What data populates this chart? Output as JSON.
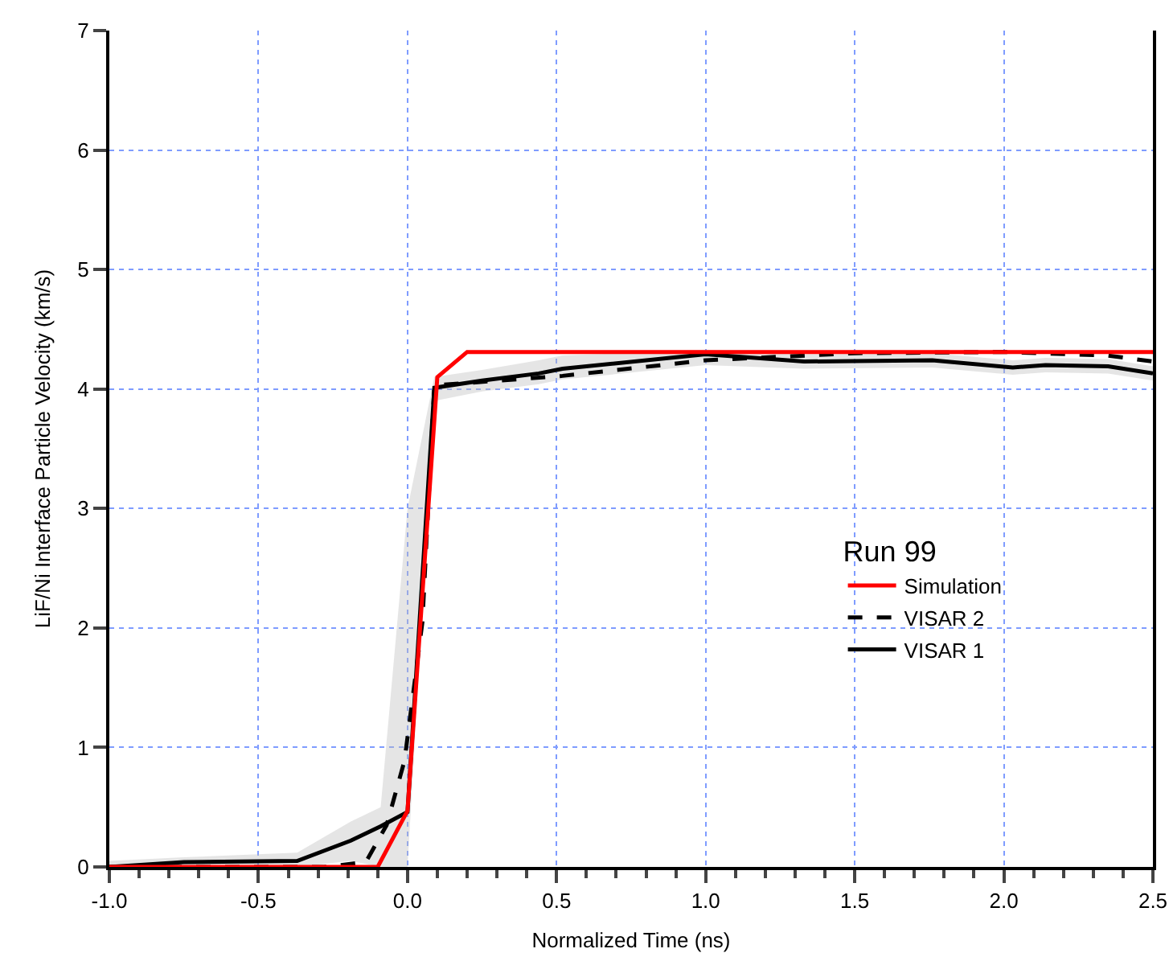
{
  "chart_data": {
    "type": "line",
    "xlabel": "Normalized Time (ns)",
    "ylabel": "LiF/Ni Interface Particle Velocity (km/s)",
    "legend_title": "Run 99",
    "legend": "right",
    "grid": true,
    "marker": "none",
    "xlim": [
      -1,
      2.5
    ],
    "ylim": [
      0,
      7
    ],
    "xticks": [
      {
        "value": -1,
        "label": "-1.0"
      },
      {
        "value": -0.5,
        "label": "-0.5"
      },
      {
        "value": 0,
        "label": "0.0"
      },
      {
        "value": 0.5,
        "label": "0.5"
      },
      {
        "value": 1,
        "label": "1.0"
      },
      {
        "value": 1.5,
        "label": "1.5"
      },
      {
        "value": 2,
        "label": "2.0"
      },
      {
        "value": 2.5,
        "label": "2.5"
      }
    ],
    "yticks": [
      0,
      1,
      2,
      3,
      4,
      5,
      6,
      7
    ],
    "series": [
      {
        "name": "VISAR 1",
        "color": "#000000",
        "line_style": "solid",
        "x": [
          -1,
          -0.75,
          -0.37,
          -0.19,
          -0.09,
          0,
          0.09,
          0.25,
          0.44,
          0.52,
          1.0,
          1.33,
          1.76,
          2.03,
          2.14,
          2.35,
          2.5
        ],
        "values": [
          0,
          0.04,
          0.05,
          0.22,
          0.34,
          0.46,
          4.01,
          4.07,
          4.13,
          4.17,
          4.29,
          4.23,
          4.24,
          4.18,
          4.2,
          4.19,
          4.13
        ],
        "lower": [
          0,
          0,
          0,
          0.05,
          0,
          0,
          3.9,
          3.98,
          4.04,
          4.08,
          4.2,
          4.17,
          4.18,
          4.12,
          4.14,
          4.13,
          4.07
        ],
        "upper": [
          0.05,
          0.08,
          0.12,
          0.38,
          0.5,
          3.0,
          4.1,
          4.16,
          4.24,
          4.28,
          4.33,
          4.29,
          4.3,
          4.24,
          4.26,
          4.25,
          4.19
        ]
      },
      {
        "name": "VISAR 2",
        "color": "#000000",
        "line_style": "dashed",
        "x": [
          -1,
          -0.28,
          -0.14,
          -0.07,
          -0.01,
          0.05,
          0.09,
          0.52,
          1.0,
          1.5,
          2.0,
          2.35,
          2.5
        ],
        "values": [
          0,
          0,
          0.04,
          0.35,
          0.89,
          2.05,
          4.03,
          4.11,
          4.24,
          4.3,
          4.31,
          4.28,
          4.23
        ]
      },
      {
        "name": "Simulation",
        "color": "#ff0000",
        "line_style": "solid",
        "x": [
          -1,
          -0.1,
          0,
          0.1,
          0.2,
          2.5
        ],
        "values": [
          0,
          0,
          0.47,
          4.1,
          4.31,
          4.31
        ]
      }
    ]
  }
}
